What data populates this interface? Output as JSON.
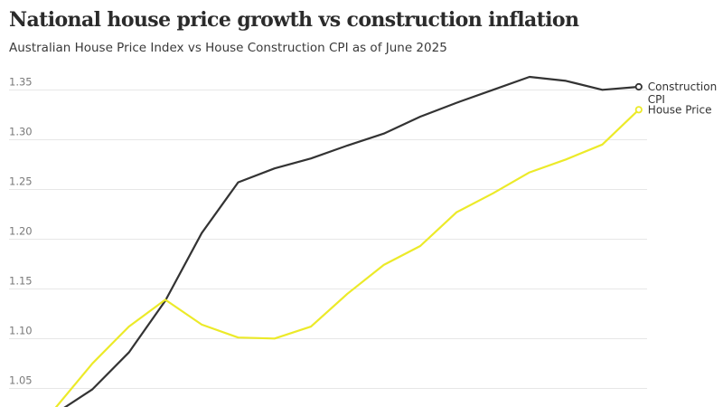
{
  "title": "National house price growth vs construction inflation",
  "subtitle": "Australian House Price Index vs House Construction CPI as of June 2025",
  "chart_data": {
    "type": "line",
    "title": "National house price growth vs construction inflation",
    "subtitle": "Australian House Price Index vs House Construction CPI as of June 2025",
    "xlabel": "",
    "ylabel": "",
    "y_ticks": [
      "1.35",
      "1.30",
      "1.25",
      "1.20",
      "1.15",
      "1.10",
      "1.05"
    ],
    "ylim": [
      1.025,
      1.367
    ],
    "grid": true,
    "legend": "inline labels at end of lines",
    "series": [
      {
        "name": "Construction CPI",
        "color": "#333333",
        "values": [
          1.017,
          1.041,
          1.078,
          1.13,
          1.198,
          1.249,
          1.263,
          1.273,
          1.286,
          1.298,
          1.315,
          1.329,
          1.342,
          1.355,
          1.351,
          1.342,
          1.345
        ]
      },
      {
        "name": "House Price",
        "color": "#ecea29",
        "values": [
          1.023,
          1.067,
          1.104,
          1.131,
          1.106,
          1.093,
          1.092,
          1.104,
          1.137,
          1.166,
          1.185,
          1.219,
          1.238,
          1.259,
          1.272,
          1.287,
          1.322
        ]
      }
    ]
  }
}
